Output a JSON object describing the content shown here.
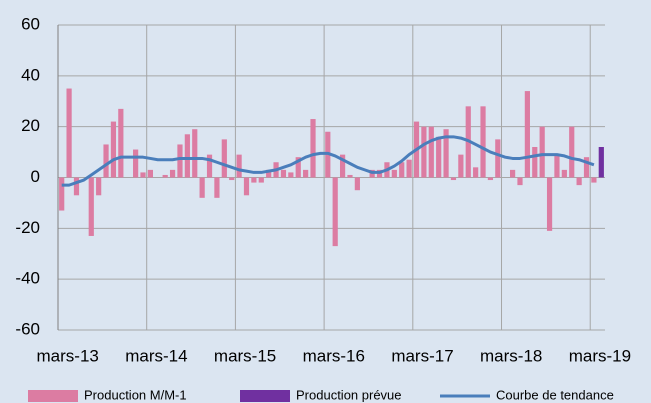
{
  "chart_data": {
    "type": "bar",
    "categories": [
      "mars-13",
      null,
      null,
      null,
      null,
      null,
      null,
      null,
      null,
      null,
      null,
      null,
      "mars-14",
      null,
      null,
      null,
      null,
      null,
      null,
      null,
      null,
      null,
      null,
      null,
      "mars-15",
      null,
      null,
      null,
      null,
      null,
      null,
      null,
      null,
      null,
      null,
      null,
      "mars-16",
      null,
      null,
      null,
      null,
      null,
      null,
      null,
      null,
      null,
      null,
      null,
      "mars-17",
      null,
      null,
      null,
      null,
      null,
      null,
      null,
      null,
      null,
      null,
      null,
      "mars-18",
      null,
      null,
      null,
      null,
      null,
      null,
      null,
      null,
      null,
      null,
      null,
      "mars-19",
      null
    ],
    "series": [
      {
        "name": "Production M/M-1",
        "color": "#dc7ca2",
        "kind": "bar",
        "values": [
          -13,
          35,
          -7,
          0,
          -23,
          -7,
          13,
          22,
          27,
          0,
          11,
          2,
          3,
          0,
          1,
          3,
          13,
          17,
          19,
          -8,
          9,
          -8,
          15,
          -1,
          9,
          -7,
          -2,
          -2,
          3,
          6,
          3,
          2,
          8,
          3,
          23,
          0,
          18,
          -27,
          9,
          1,
          -5,
          0,
          3,
          3,
          6,
          3,
          6,
          7,
          22,
          20,
          20,
          16,
          19,
          -1,
          9,
          28,
          4,
          28,
          -1,
          15,
          0,
          3,
          -3,
          34,
          12,
          20,
          -21,
          9,
          3,
          20,
          -3,
          8,
          -2,
          null
        ]
      },
      {
        "name": "Production prévue",
        "color": "#7030a0",
        "kind": "bar",
        "values": [
          null,
          null,
          null,
          null,
          null,
          null,
          null,
          null,
          null,
          null,
          null,
          null,
          null,
          null,
          null,
          null,
          null,
          null,
          null,
          null,
          null,
          null,
          null,
          null,
          null,
          null,
          null,
          null,
          null,
          null,
          null,
          null,
          null,
          null,
          null,
          null,
          null,
          null,
          null,
          null,
          null,
          null,
          null,
          null,
          null,
          null,
          null,
          null,
          null,
          null,
          null,
          null,
          null,
          null,
          null,
          null,
          null,
          null,
          null,
          null,
          null,
          null,
          null,
          null,
          null,
          null,
          null,
          null,
          null,
          null,
          null,
          null,
          null,
          12
        ]
      },
      {
        "name": "Courbe de tendance",
        "color": "#4a7ebb",
        "kind": "line",
        "values": [
          -3,
          -3,
          -2,
          -1,
          1,
          3,
          5,
          7,
          8,
          8,
          8,
          8,
          7.5,
          7,
          7,
          7,
          7.5,
          7.5,
          7.5,
          7.5,
          7,
          6,
          5,
          4,
          3,
          2.5,
          2,
          2,
          2.5,
          3,
          4,
          5,
          6.5,
          8,
          9,
          9.5,
          9.5,
          8.5,
          7,
          5.5,
          4,
          3,
          2,
          2,
          3,
          4.5,
          6.5,
          9,
          11,
          13,
          14.5,
          15.5,
          16,
          16,
          15.5,
          14.5,
          13,
          11.5,
          10,
          9,
          8,
          7.5,
          7.5,
          8,
          8.5,
          9,
          9,
          9,
          8.5,
          7.5,
          7,
          6,
          5,
          null
        ]
      }
    ],
    "ylim": [
      -60,
      60
    ],
    "yticks": [
      -60,
      -40,
      -20,
      0,
      20,
      40,
      60
    ],
    "grid": true,
    "legend": "bottom"
  }
}
